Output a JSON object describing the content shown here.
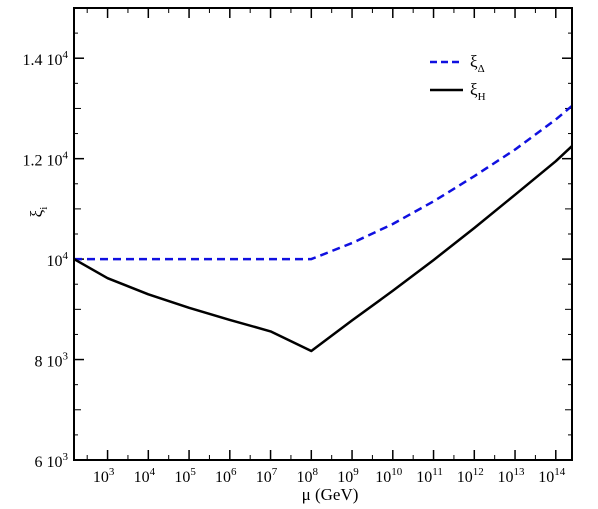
{
  "chart_data": {
    "type": "line",
    "title": "",
    "xlabel": "μ (GeV)",
    "ylabel": "ξ",
    "ylabel_sub": "i",
    "x_scale": "log",
    "xlim": [
      150,
      250000000000000.0
    ],
    "ylim": [
      6000,
      15000
    ],
    "grid": false,
    "legend_position": "top-right",
    "x_ticks": [
      {
        "value": 1000.0,
        "base": "10",
        "exp": "3"
      },
      {
        "value": 10000.0,
        "base": "10",
        "exp": "4"
      },
      {
        "value": 100000.0,
        "base": "10",
        "exp": "5"
      },
      {
        "value": 1000000.0,
        "base": "10",
        "exp": "6"
      },
      {
        "value": 10000000.0,
        "base": "10",
        "exp": "7"
      },
      {
        "value": 100000000.0,
        "base": "10",
        "exp": "8"
      },
      {
        "value": 1000000000.0,
        "base": "10",
        "exp": "9"
      },
      {
        "value": 10000000000.0,
        "base": "10",
        "exp": "10"
      },
      {
        "value": 100000000000.0,
        "base": "10",
        "exp": "11"
      },
      {
        "value": 1000000000000.0,
        "base": "10",
        "exp": "12"
      },
      {
        "value": 10000000000000.0,
        "base": "10",
        "exp": "13"
      },
      {
        "value": 100000000000000.0,
        "base": "10",
        "exp": "14"
      }
    ],
    "y_ticks": [
      {
        "value": 6000,
        "base": "6 10",
        "exp": "3"
      },
      {
        "value": 8000,
        "base": "8 10",
        "exp": "3"
      },
      {
        "value": 10000,
        "base": "10",
        "exp": "4"
      },
      {
        "value": 12000,
        "base": "1.2 10",
        "exp": "4"
      },
      {
        "value": 14000,
        "base": "1.4 10",
        "exp": "4"
      }
    ],
    "series": [
      {
        "name": "ξ",
        "name_sub": "Δ",
        "color": "#1010e0",
        "dash": "dashed",
        "x": [
          150,
          1000.0,
          100000.0,
          10000000.0,
          100000000.0,
          1000000000.0,
          10000000000.0,
          100000000000.0,
          1000000000000.0,
          10000000000000.0,
          100000000000000.0,
          250000000000000.0
        ],
        "y": [
          10000,
          10000,
          10000,
          10000,
          10000,
          10320,
          10700,
          11150,
          11650,
          12180,
          12780,
          13050
        ]
      },
      {
        "name": "ξ",
        "name_sub": "H",
        "color": "#000000",
        "dash": "solid",
        "x": [
          150,
          1000.0,
          10000.0,
          100000.0,
          1000000.0,
          10000000.0,
          100000000.0,
          1000000000.0,
          10000000000.0,
          100000000000.0,
          1000000000000.0,
          10000000000000.0,
          100000000000000.0,
          250000000000000.0
        ],
        "y": [
          10000,
          9620,
          9300,
          9030,
          8790,
          8560,
          8170,
          8780,
          9370,
          9980,
          10620,
          11280,
          11950,
          12250
        ]
      }
    ]
  }
}
